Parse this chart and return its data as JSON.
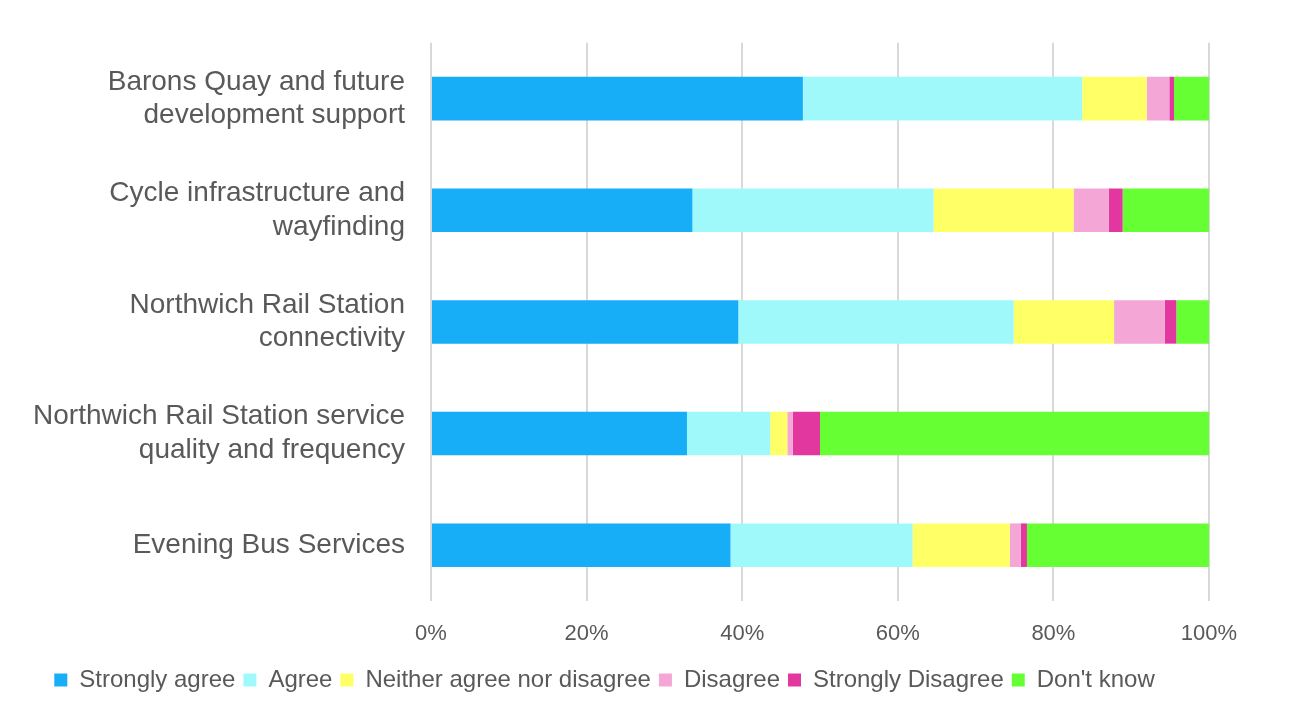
{
  "chart_data": {
    "type": "bar",
    "orientation": "horizontal",
    "stacked": true,
    "categories": [
      "Barons Quay and future development support",
      "Cycle infrastructure and wayfinding",
      "Northwich Rail Station connectivity",
      "Northwich Rail Station service quality and frequency",
      "Evening Bus Services"
    ],
    "series": [
      {
        "name": "Strongly agree",
        "color": "#17adf7",
        "values": [
          47.8,
          33.6,
          39.5,
          32.9,
          38.5
        ]
      },
      {
        "name": "Agree",
        "color": "#9ff9fb",
        "values": [
          35.9,
          31.0,
          35.4,
          10.7,
          23.4
        ]
      },
      {
        "name": "Neither agree nor disagree",
        "color": "#ffff66",
        "values": [
          8.3,
          18.0,
          12.9,
          2.2,
          12.5
        ]
      },
      {
        "name": "Disagree",
        "color": "#f4a6d7",
        "values": [
          2.9,
          4.5,
          6.5,
          0.7,
          1.4
        ]
      },
      {
        "name": "Strongly Disagree",
        "color": "#e2379f",
        "values": [
          0.6,
          1.8,
          1.5,
          3.5,
          0.8
        ]
      },
      {
        "name": "Don't know",
        "color": "#66ff33",
        "values": [
          4.5,
          11.1,
          4.2,
          50.0,
          23.4
        ]
      }
    ],
    "xlim": [
      0,
      100
    ],
    "xticks": [
      {
        "value": 0,
        "label": "0%"
      },
      {
        "value": 20,
        "label": "20%"
      },
      {
        "value": 40,
        "label": "40%"
      },
      {
        "value": 60,
        "label": "60%"
      },
      {
        "value": 80,
        "label": "80%"
      },
      {
        "value": 100,
        "label": "100%"
      }
    ],
    "grid": "x",
    "legend": "bottom"
  }
}
